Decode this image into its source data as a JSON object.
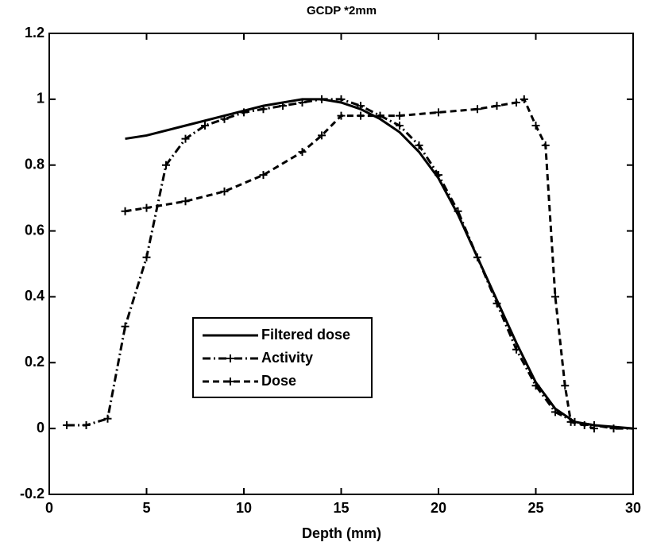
{
  "chart_data": {
    "type": "line",
    "title": "GCDP *2mm",
    "xlabel": "Depth (mm)",
    "xlim": [
      0,
      30
    ],
    "xticks": [
      0,
      5,
      10,
      15,
      20,
      25,
      30
    ],
    "ylim": [
      -0.2,
      1.2
    ],
    "yticks": [
      -0.2,
      0,
      0.2,
      0.4,
      0.6,
      0.8,
      1,
      1.2
    ],
    "grid": false,
    "legend": "center-left",
    "series": [
      {
        "name": "Filtered dose",
        "color": "#000000",
        "line_style": "solid",
        "marker": null,
        "x": [
          3.9,
          5,
          7,
          9,
          11,
          13,
          14,
          15,
          16,
          17,
          18,
          19,
          20,
          21,
          22,
          23,
          24,
          25,
          26,
          27,
          28,
          30
        ],
        "values": [
          0.88,
          0.89,
          0.92,
          0.95,
          0.98,
          1.0,
          1.0,
          0.99,
          0.97,
          0.94,
          0.9,
          0.84,
          0.76,
          0.65,
          0.52,
          0.39,
          0.26,
          0.14,
          0.06,
          0.02,
          0.01,
          0.0
        ]
      },
      {
        "name": "Activity",
        "color": "#000000",
        "line_style": "dashdot",
        "marker": "+",
        "x": [
          0.9,
          1.9,
          3,
          3.9,
          5,
          6,
          7,
          8,
          9,
          10,
          11,
          12,
          13,
          14,
          15,
          16,
          17,
          18,
          19,
          20,
          21,
          22,
          23,
          24,
          25,
          26,
          27,
          28,
          29,
          30
        ],
        "values": [
          0.01,
          0.01,
          0.03,
          0.31,
          0.52,
          0.8,
          0.88,
          0.92,
          0.94,
          0.96,
          0.97,
          0.98,
          0.99,
          1.0,
          1.0,
          0.98,
          0.95,
          0.92,
          0.86,
          0.77,
          0.66,
          0.52,
          0.38,
          0.24,
          0.13,
          0.05,
          0.02,
          0.01,
          0.0,
          0.0
        ]
      },
      {
        "name": "Dose",
        "color": "#000000",
        "line_style": "dashed",
        "marker": "+",
        "x": [
          3.9,
          5,
          7,
          9,
          11,
          13,
          14,
          15,
          16,
          18,
          20,
          22,
          23,
          24,
          24.4,
          25,
          25.5,
          26,
          26.5,
          26.8,
          27.5,
          28
        ],
        "values": [
          0.66,
          0.67,
          0.69,
          0.72,
          0.77,
          0.84,
          0.89,
          0.95,
          0.95,
          0.95,
          0.96,
          0.97,
          0.98,
          0.99,
          1.0,
          0.92,
          0.86,
          0.4,
          0.13,
          0.02,
          0.01,
          0.0
        ]
      }
    ]
  }
}
